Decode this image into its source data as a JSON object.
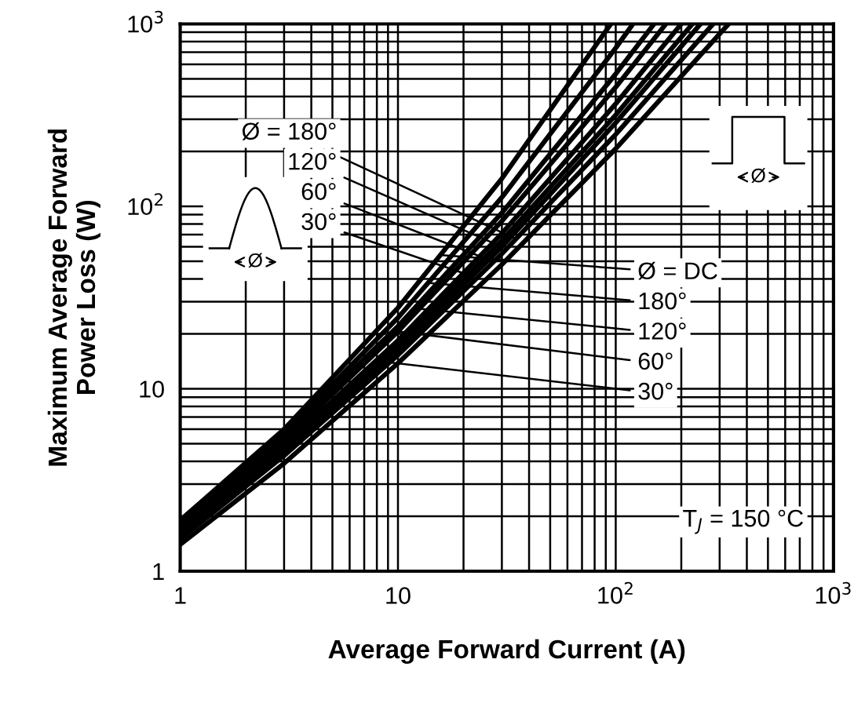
{
  "chart_data": {
    "type": "line",
    "xlabel": "Average Forward Current (A)",
    "ylabel": "Maximum Average Forward\nPower Loss (W)",
    "series": [
      {
        "color": "#000000",
        "x": [
          1,
          3,
          10,
          30,
          95
        ],
        "values": [
          1.9,
          6.0,
          27.8,
          142,
          1000
        ]
      },
      {
        "color": "#000000",
        "x": [
          1,
          3,
          10,
          30,
          100,
          120
        ],
        "values": [
          1.85,
          5.7,
          24.5,
          112,
          738,
          1000
        ]
      },
      {
        "color": "#000000",
        "x": [
          1,
          3,
          10,
          30,
          100,
          150
        ],
        "values": [
          1.8,
          5.5,
          22,
          92,
          532,
          1000
        ]
      },
      {
        "color": "#000000",
        "x": [
          1,
          3,
          10,
          30,
          100,
          170
        ],
        "values": [
          1.75,
          5.2,
          20.6,
          83,
          450,
          1000
        ]
      },
      {
        "color": "#000000",
        "x": [
          1,
          3,
          10,
          30,
          100,
          200
        ],
        "values": [
          1.65,
          4.9,
          18.4,
          71,
          365,
          1000
        ]
      },
      {
        "color": "#000000",
        "x": [
          1,
          3,
          10,
          30,
          100,
          225
        ],
        "values": [
          1.6,
          4.7,
          17.3,
          65,
          317,
          1000
        ]
      },
      {
        "color": "#000000",
        "x": [
          1,
          3,
          10,
          30,
          100,
          245
        ],
        "values": [
          1.55,
          4.5,
          16.4,
          60,
          287,
          1000
        ]
      },
      {
        "color": "#000000",
        "x": [
          1,
          3,
          10,
          30,
          100,
          280
        ],
        "values": [
          1.5,
          4.3,
          15.3,
          55,
          248,
          1000
        ]
      },
      {
        "color": "#000000",
        "x": [
          1,
          3,
          10,
          30,
          100,
          330
        ],
        "values": [
          1.4,
          3.9,
          13.8,
          48,
          207,
          1000
        ]
      }
    ],
    "annotations": [
      {
        "text": "Ø = 180°",
        "x": 35,
        "y": 66
      },
      {
        "text": "120°",
        "x": 30,
        "y": 60
      },
      {
        "text": "60°",
        "x": 25,
        "y": 52
      },
      {
        "text": "30°",
        "x": 20,
        "y": 43
      },
      {
        "text": "Ø = DC",
        "x": 16,
        "y": 54
      },
      {
        "text": "180°",
        "x": 14,
        "y": 38
      },
      {
        "text": "120°",
        "x": 12,
        "y": 27.6
      },
      {
        "text": "60°",
        "x": 10,
        "y": 20.6
      },
      {
        "text": "30°",
        "x": 8,
        "y": 14.2
      },
      "T$_{J}$ = 150 °C",
      "Ø",
      "Ø"
    ],
    "log": "xy",
    "xlim": [
      1,
      1000
    ],
    "ylim": [
      1,
      1000
    ],
    "xticks": [
      1,
      10,
      {
        "value": 100,
        "label": "10$^{2}$"
      },
      {
        "value": 1000,
        "label": "10$^{3}$"
      }
    ],
    "yticks": [
      1,
      10,
      {
        "value": 100,
        "label": "10$^{2}$"
      },
      {
        "value": 1000,
        "label": "10$^{3}$"
      }
    ],
    "grid": true,
    "marker": "none",
    "line_style": "solid"
  }
}
